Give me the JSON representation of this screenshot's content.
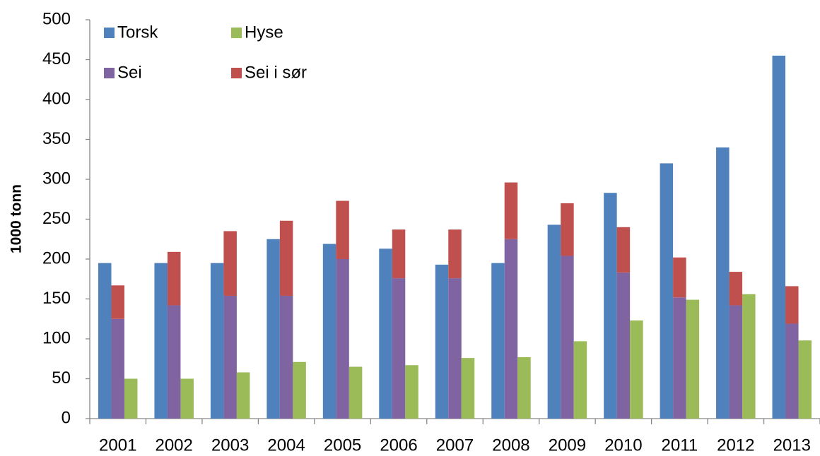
{
  "chart_data": {
    "type": "bar",
    "y_label": "1000 tonn",
    "categories": [
      "2001",
      "2002",
      "2003",
      "2004",
      "2005",
      "2006",
      "2007",
      "2008",
      "2009",
      "2010",
      "2011",
      "2012",
      "2013"
    ],
    "series": [
      {
        "name": "Torsk",
        "color": "#4f81bd",
        "values": [
          195,
          195,
          195,
          225,
          219,
          213,
          193,
          195,
          243,
          283,
          320,
          340,
          455
        ]
      },
      {
        "name": "Sei",
        "color": "#8064a2",
        "stack": "Sei",
        "values": [
          125,
          142,
          154,
          154,
          200,
          176,
          176,
          225,
          204,
          183,
          152,
          142,
          119
        ]
      },
      {
        "name": "Sei i sør",
        "color": "#c0504d",
        "stack": "Sei",
        "values": [
          42,
          67,
          81,
          94,
          73,
          61,
          61,
          71,
          66,
          57,
          50,
          42,
          47
        ]
      },
      {
        "name": "Hyse",
        "color": "#9bbb59",
        "values": [
          50,
          50,
          58,
          71,
          65,
          67,
          76,
          77,
          97,
          123,
          149,
          156,
          98
        ]
      }
    ],
    "ylim": [
      0,
      500
    ],
    "yticks": [
      0,
      50,
      100,
      150,
      200,
      250,
      300,
      350,
      400,
      450,
      500
    ],
    "grid": false
  }
}
